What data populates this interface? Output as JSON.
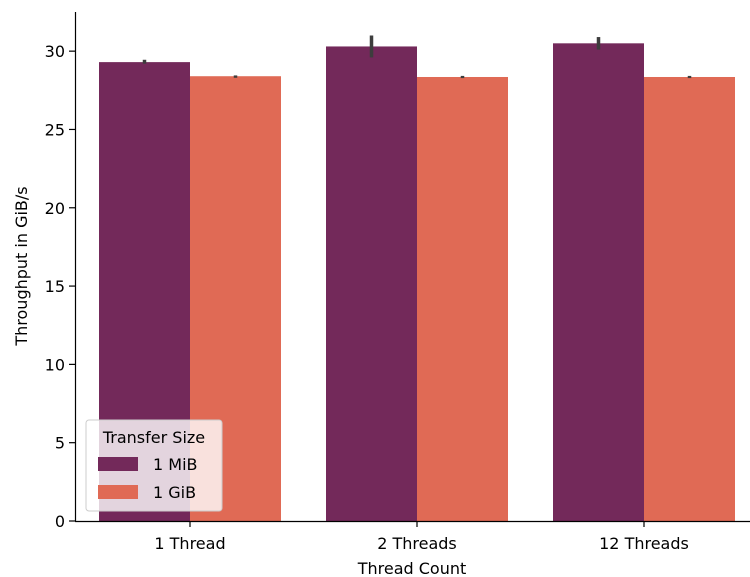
{
  "chart_data": {
    "type": "bar",
    "title": "",
    "xlabel": "Thread Count",
    "ylabel": "Throughput in GiB/s",
    "categories": [
      "1 Thread",
      "2 Threads",
      "12 Threads"
    ],
    "series": [
      {
        "name": "1 MiB",
        "color": "#73295a",
        "values": [
          29.3,
          30.3,
          30.5
        ],
        "error": [
          [
            29.2,
            29.45
          ],
          [
            29.6,
            31.0
          ],
          [
            30.1,
            30.9
          ]
        ]
      },
      {
        "name": "1 GiB",
        "color": "#e06a55",
        "values": [
          28.4,
          28.35,
          28.35
        ],
        "error": [
          [
            28.3,
            28.45
          ],
          [
            28.28,
            28.42
          ],
          [
            28.28,
            28.42
          ]
        ]
      }
    ],
    "ylim": [
      0,
      32.5
    ],
    "yticks": [
      0,
      5,
      10,
      15,
      20,
      25,
      30
    ],
    "grid": false,
    "legend": {
      "title": "Transfer Size",
      "placement": "lower-left"
    }
  }
}
